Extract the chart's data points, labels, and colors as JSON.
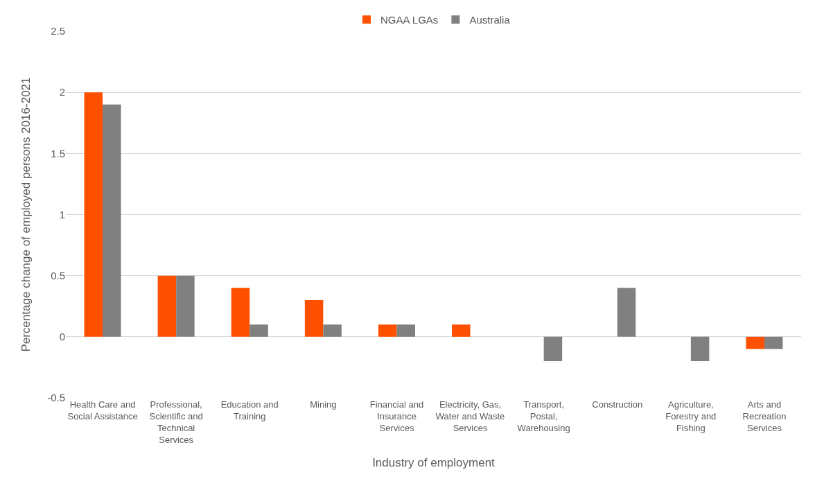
{
  "chart_data": {
    "type": "bar",
    "xlabel": "Industry of employment",
    "ylabel": "Percentage change of employed persons 2016-2021",
    "categories": [
      "Health Care and Social Assistance",
      "Professional, Scientific and Technical Services",
      "Education and Training",
      "Mining",
      "Financial and Insurance Services",
      "Electricity, Gas, Water and Waste Services",
      "Transport, Postal, Warehousing",
      "Construction",
      "Agriculture, Forestry and Fishing",
      "Arts and Recreation Services"
    ],
    "series": [
      {
        "name": "NGAA LGAs",
        "color": "#ff5000",
        "values": [
          2.0,
          0.5,
          0.4,
          0.3,
          0.1,
          0.1,
          0,
          0,
          0,
          -0.1
        ]
      },
      {
        "name": "Australia",
        "color": "#808080",
        "values": [
          1.9,
          0.5,
          0.1,
          0.1,
          0.1,
          0,
          -0.2,
          0.4,
          -0.2,
          -0.1
        ]
      }
    ],
    "ylim": [
      -0.5,
      2.5
    ],
    "yticks": [
      -0.5,
      0,
      0.5,
      1,
      1.5,
      2,
      2.5
    ],
    "grid": "y",
    "legend": "top"
  }
}
